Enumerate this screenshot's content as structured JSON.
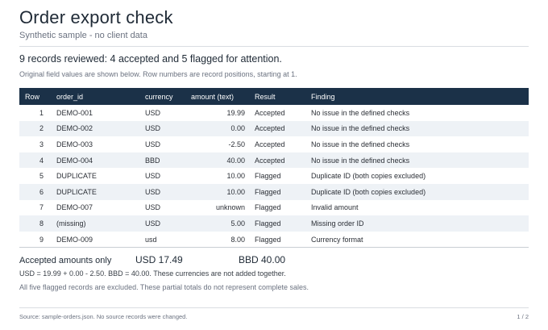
{
  "header": {
    "title": "Order export check",
    "subtitle": "Synthetic sample - no client data"
  },
  "summary": "9 records reviewed: 4 accepted and 5 flagged for attention.",
  "note": "Original field values are shown below. Row numbers are record positions, starting at 1.",
  "table": {
    "columns": [
      "Row",
      "order_id",
      "currency",
      "amount (text)",
      "Result",
      "Finding"
    ],
    "rows": [
      {
        "row": "1",
        "order_id": "DEMO-001",
        "currency": "USD",
        "amount": "19.99",
        "result": "Accepted",
        "finding": "No issue in the defined checks"
      },
      {
        "row": "2",
        "order_id": "DEMO-002",
        "currency": "USD",
        "amount": "0.00",
        "result": "Accepted",
        "finding": "No issue in the defined checks"
      },
      {
        "row": "3",
        "order_id": "DEMO-003",
        "currency": "USD",
        "amount": "-2.50",
        "result": "Accepted",
        "finding": "No issue in the defined checks"
      },
      {
        "row": "4",
        "order_id": "DEMO-004",
        "currency": "BBD",
        "amount": "40.00",
        "result": "Accepted",
        "finding": "No issue in the defined checks"
      },
      {
        "row": "5",
        "order_id": "DUPLICATE",
        "currency": "USD",
        "amount": "10.00",
        "result": "Flagged",
        "finding": "Duplicate ID (both copies excluded)"
      },
      {
        "row": "6",
        "order_id": "DUPLICATE",
        "currency": "USD",
        "amount": "10.00",
        "result": "Flagged",
        "finding": "Duplicate ID (both copies excluded)"
      },
      {
        "row": "7",
        "order_id": "DEMO-007",
        "currency": "USD",
        "amount": "unknown",
        "result": "Flagged",
        "finding": "Invalid amount"
      },
      {
        "row": "8",
        "order_id": "(missing)",
        "currency": "USD",
        "amount": "5.00",
        "result": "Flagged",
        "finding": "Missing order ID"
      },
      {
        "row": "9",
        "order_id": "DEMO-009",
        "currency": "usd",
        "amount": "8.00",
        "result": "Flagged",
        "finding": "Currency format"
      }
    ]
  },
  "totals": {
    "label": "Accepted amounts only",
    "usd": "USD 17.49",
    "bbd": "BBD 40.00",
    "calculation": "USD = 19.99 + 0.00 - 2.50. BBD = 40.00. These currencies are not added together.",
    "exclusion_note": "All five flagged records are excluded. These partial totals do not represent complete sales."
  },
  "footer": {
    "source": "Source: sample-orders.json. No source records were changed.",
    "page": "1 / 2"
  },
  "colors": {
    "header_band": "#1b3148",
    "accepted": "#2f7a45",
    "flagged": "#8a6414",
    "stripe": "#eef2f6"
  }
}
